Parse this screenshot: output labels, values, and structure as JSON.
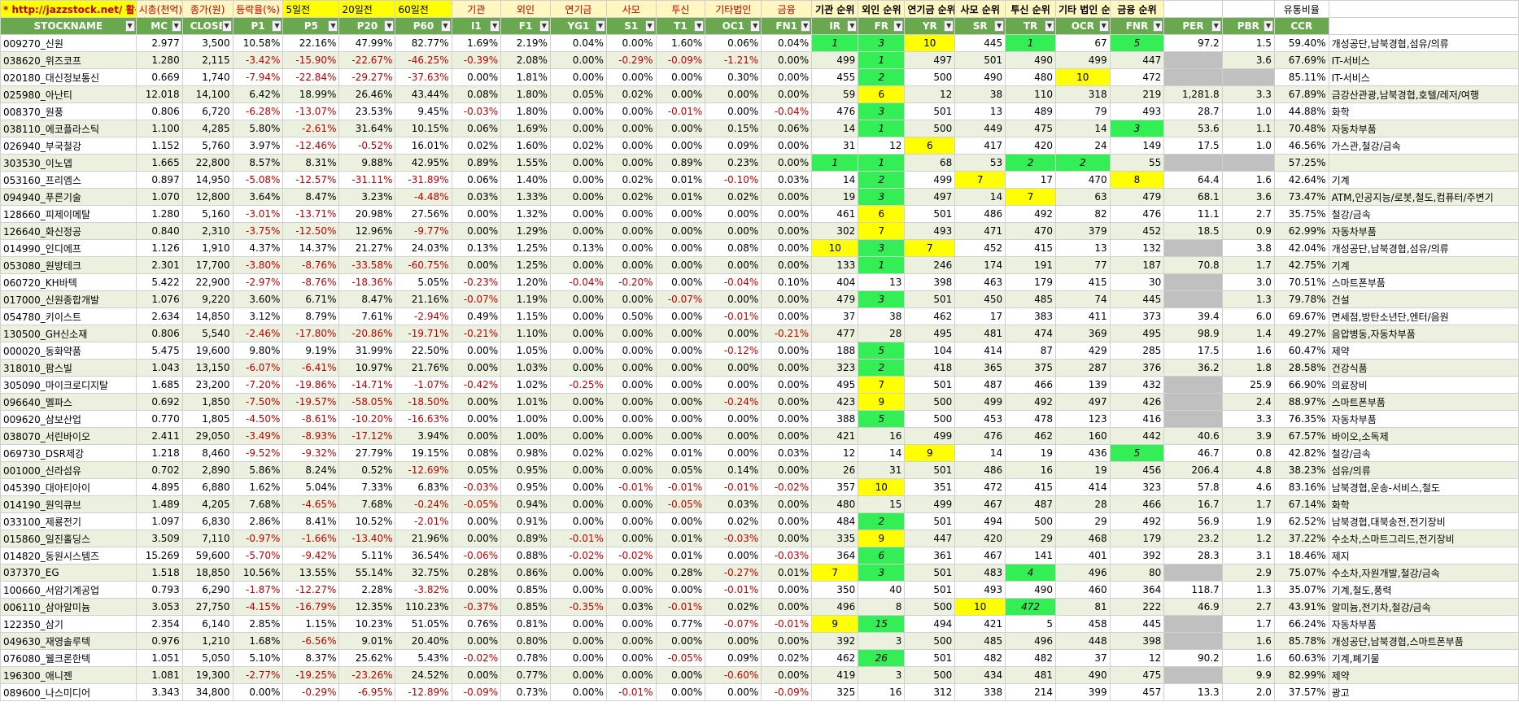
{
  "top_headers": [
    {
      "text": "* http://jazzstock.net/ 활용",
      "cls": "url",
      "colspan": 1
    },
    {
      "text": "시총(천억)",
      "cls": "",
      "colspan": 1
    },
    {
      "text": "종가(원)",
      "cls": "",
      "colspan": 1
    },
    {
      "text": "등락율(%)",
      "cls": "",
      "colspan": 1
    },
    {
      "text": "5일전",
      "cls": "yel",
      "colspan": 1
    },
    {
      "text": "20일전",
      "cls": "yel",
      "colspan": 1
    },
    {
      "text": "60일전",
      "cls": "yel",
      "colspan": 1
    },
    {
      "text": "기관",
      "cls": "",
      "colspan": 1
    },
    {
      "text": "외인",
      "cls": "",
      "colspan": 1
    },
    {
      "text": "연기금",
      "cls": "",
      "colspan": 1
    },
    {
      "text": "사모",
      "cls": "",
      "colspan": 1
    },
    {
      "text": "투신",
      "cls": "",
      "colspan": 1
    },
    {
      "text": "기타법인",
      "cls": "",
      "colspan": 1
    },
    {
      "text": "금융",
      "cls": "",
      "colspan": 1
    },
    {
      "text": "기관 순위",
      "cls": "bold",
      "colspan": 1
    },
    {
      "text": "외인 순위",
      "cls": "bold",
      "colspan": 1
    },
    {
      "text": "연기금 순위",
      "cls": "bold",
      "colspan": 1
    },
    {
      "text": "사모 순위",
      "cls": "bold",
      "colspan": 1
    },
    {
      "text": "투신 순위",
      "cls": "bold",
      "colspan": 1
    },
    {
      "text": "기타 법인 순위",
      "cls": "bold",
      "colspan": 1
    },
    {
      "text": "금융 순위",
      "cls": "bold",
      "colspan": 1
    },
    {
      "text": "",
      "cls": "plain",
      "colspan": 1
    },
    {
      "text": "",
      "cls": "plain",
      "colspan": 1
    },
    {
      "text": "유통비율",
      "cls": "plain",
      "colspan": 1
    },
    {
      "text": "",
      "cls": "plain",
      "colspan": 1
    }
  ],
  "columns": [
    "STOCKNAME",
    "MC",
    "CLOSE",
    "P1",
    "P5",
    "P20",
    "P60",
    "I1",
    "F1",
    "YG1",
    "S1",
    "T1",
    "OC1",
    "FN1",
    "IR",
    "FR",
    "YR",
    "SR",
    "TR",
    "OCR",
    "FNR",
    "PER",
    "PBR",
    "CCR",
    ""
  ],
  "rows": [
    [
      "009270_신원",
      "2.977",
      "3,500",
      "10.58%",
      "22.16%",
      "47.99%",
      "82.77%",
      "1.69%",
      "2.19%",
      "0.04%",
      "0.00%",
      "1.60%",
      "0.06%",
      "0.04%",
      "1",
      "3",
      "10",
      "445",
      "1",
      "67",
      "5",
      "97.2",
      "1.5",
      "59.40%",
      "개성공단,남북경협,섬유/의류"
    ],
    [
      "038620_위즈코프",
      "1.280",
      "2,115",
      "-3.42%",
      "-15.90%",
      "-22.67%",
      "-46.25%",
      "-0.39%",
      "2.08%",
      "0.00%",
      "-0.29%",
      "-0.09%",
      "-1.21%",
      "0.00%",
      "499",
      "1",
      "497",
      "501",
      "490",
      "499",
      "447",
      "",
      "3.6",
      "67.69%",
      "IT-서비스"
    ],
    [
      "020180_대신정보통신",
      "0.669",
      "1,740",
      "-7.94%",
      "-22.84%",
      "-29.27%",
      "-37.63%",
      "0.00%",
      "1.81%",
      "0.00%",
      "0.00%",
      "0.00%",
      "0.30%",
      "0.00%",
      "455",
      "2",
      "500",
      "490",
      "480",
      "10",
      "472",
      "",
      "",
      "85.11%",
      "IT-서비스"
    ],
    [
      "025980_아난티",
      "12.018",
      "14,100",
      "6.42%",
      "18.99%",
      "26.46%",
      "43.44%",
      "0.08%",
      "1.80%",
      "0.05%",
      "0.02%",
      "0.00%",
      "0.00%",
      "0.00%",
      "59",
      "6",
      "12",
      "38",
      "110",
      "318",
      "219",
      "1,281.8",
      "3.3",
      "67.89%",
      "금강산관광,남북경협,호텔/레저/여행"
    ],
    [
      "008370_원풍",
      "0.806",
      "6,720",
      "-6.28%",
      "-13.07%",
      "23.53%",
      "9.45%",
      "-0.03%",
      "1.80%",
      "0.00%",
      "0.00%",
      "-0.01%",
      "0.00%",
      "-0.04%",
      "476",
      "3",
      "501",
      "13",
      "489",
      "79",
      "493",
      "28.7",
      "1.0",
      "44.88%",
      "화학"
    ],
    [
      "038110_에코플라스틱",
      "1.100",
      "4,285",
      "5.80%",
      "-2.61%",
      "31.64%",
      "10.15%",
      "0.06%",
      "1.69%",
      "0.00%",
      "0.00%",
      "0.00%",
      "0.15%",
      "0.06%",
      "14",
      "1",
      "500",
      "449",
      "475",
      "14",
      "3",
      "53.6",
      "1.1",
      "70.48%",
      "자동차부품"
    ],
    [
      "026940_부국철강",
      "1.152",
      "5,760",
      "3.97%",
      "-12.46%",
      "-0.52%",
      "16.01%",
      "0.02%",
      "1.60%",
      "0.02%",
      "0.00%",
      "0.00%",
      "0.09%",
      "0.00%",
      "31",
      "12",
      "6",
      "417",
      "420",
      "24",
      "149",
      "17.5",
      "1.0",
      "46.56%",
      "가스관,철강/금속"
    ],
    [
      "303530_이노뎁",
      "1.665",
      "22,800",
      "8.57%",
      "8.31%",
      "9.88%",
      "42.95%",
      "0.89%",
      "1.55%",
      "0.00%",
      "0.00%",
      "0.89%",
      "0.23%",
      "0.00%",
      "1",
      "1",
      "68",
      "53",
      "2",
      "2",
      "55",
      "",
      "",
      "57.25%",
      ""
    ],
    [
      "053160_프리엠스",
      "0.897",
      "14,950",
      "-5.08%",
      "-12.57%",
      "-31.11%",
      "-31.89%",
      "0.06%",
      "1.40%",
      "0.00%",
      "0.02%",
      "0.01%",
      "-0.10%",
      "0.03%",
      "14",
      "2",
      "499",
      "7",
      "17",
      "470",
      "8",
      "64.4",
      "1.6",
      "42.64%",
      "기계"
    ],
    [
      "094940_푸른기술",
      "1.070",
      "12,800",
      "3.64%",
      "8.47%",
      "3.23%",
      "-4.48%",
      "0.03%",
      "1.33%",
      "0.00%",
      "0.02%",
      "0.01%",
      "0.02%",
      "0.00%",
      "19",
      "3",
      "497",
      "14",
      "7",
      "63",
      "479",
      "68.1",
      "3.6",
      "73.47%",
      "ATM,인공지능/로봇,철도,컴퓨터/주변기"
    ],
    [
      "128660_피제이메탈",
      "1.280",
      "5,160",
      "-3.01%",
      "-13.71%",
      "20.98%",
      "27.56%",
      "0.00%",
      "1.32%",
      "0.00%",
      "0.00%",
      "0.00%",
      "0.00%",
      "0.00%",
      "461",
      "6",
      "501",
      "486",
      "492",
      "82",
      "476",
      "11.1",
      "2.7",
      "35.75%",
      "철강/금속"
    ],
    [
      "126640_화신정공",
      "0.840",
      "2,310",
      "-3.75%",
      "-12.50%",
      "12.96%",
      "-9.77%",
      "0.00%",
      "1.29%",
      "0.00%",
      "0.00%",
      "0.00%",
      "0.00%",
      "0.00%",
      "302",
      "7",
      "493",
      "471",
      "470",
      "379",
      "452",
      "18.5",
      "0.9",
      "62.99%",
      "자동차부품"
    ],
    [
      "014990_인디에프",
      "1.126",
      "1,910",
      "4.37%",
      "14.37%",
      "21.27%",
      "24.03%",
      "0.13%",
      "1.25%",
      "0.13%",
      "0.00%",
      "0.00%",
      "0.08%",
      "0.00%",
      "10",
      "3",
      "7",
      "452",
      "415",
      "13",
      "132",
      "",
      "3.8",
      "42.04%",
      "개성공단,남북경협,섬유/의류"
    ],
    [
      "053080_원방테크",
      "2.301",
      "17,700",
      "-3.80%",
      "-8.76%",
      "-33.58%",
      "-60.75%",
      "0.00%",
      "1.25%",
      "0.00%",
      "0.00%",
      "0.00%",
      "0.00%",
      "0.00%",
      "133",
      "1",
      "246",
      "174",
      "191",
      "77",
      "187",
      "70.8",
      "1.7",
      "42.75%",
      "기계"
    ],
    [
      "060720_KH바텍",
      "5.422",
      "22,900",
      "-2.97%",
      "-8.76%",
      "-18.36%",
      "5.05%",
      "-0.23%",
      "1.20%",
      "-0.04%",
      "-0.20%",
      "0.00%",
      "-0.04%",
      "0.10%",
      "404",
      "13",
      "398",
      "463",
      "179",
      "415",
      "30",
      "",
      "3.0",
      "70.51%",
      "스마트폰부품"
    ],
    [
      "017000_신원종합개발",
      "1.076",
      "9,220",
      "3.60%",
      "6.71%",
      "8.47%",
      "21.16%",
      "-0.07%",
      "1.19%",
      "0.00%",
      "0.00%",
      "-0.07%",
      "0.00%",
      "0.00%",
      "479",
      "3",
      "501",
      "450",
      "485",
      "74",
      "445",
      "",
      "1.3",
      "79.78%",
      "건설"
    ],
    [
      "054780_키이스트",
      "2.634",
      "14,850",
      "3.12%",
      "8.79%",
      "7.61%",
      "-2.94%",
      "0.49%",
      "1.15%",
      "0.00%",
      "0.50%",
      "0.00%",
      "-0.01%",
      "0.00%",
      "37",
      "38",
      "462",
      "17",
      "383",
      "411",
      "373",
      "39.4",
      "6.0",
      "69.67%",
      "면세점,방탄소년단,엔터/음원"
    ],
    [
      "130500_GH신소재",
      "0.806",
      "5,540",
      "-2.46%",
      "-17.80%",
      "-20.86%",
      "-19.71%",
      "-0.21%",
      "1.10%",
      "0.00%",
      "0.00%",
      "0.00%",
      "0.00%",
      "-0.21%",
      "477",
      "28",
      "495",
      "481",
      "474",
      "369",
      "495",
      "98.9",
      "1.4",
      "49.27%",
      "음압병동,자동차부품"
    ],
    [
      "000020_동화약품",
      "5.475",
      "19,600",
      "9.80%",
      "9.19%",
      "31.99%",
      "22.50%",
      "0.00%",
      "1.05%",
      "0.00%",
      "0.00%",
      "0.00%",
      "-0.12%",
      "0.00%",
      "188",
      "5",
      "104",
      "414",
      "87",
      "429",
      "285",
      "17.5",
      "1.6",
      "60.47%",
      "제약"
    ],
    [
      "318010_팜스빌",
      "1.043",
      "13,150",
      "-6.07%",
      "-6.41%",
      "10.97%",
      "21.76%",
      "0.00%",
      "1.03%",
      "0.00%",
      "0.00%",
      "0.00%",
      "0.00%",
      "0.00%",
      "323",
      "2",
      "418",
      "365",
      "375",
      "287",
      "376",
      "36.2",
      "1.8",
      "28.58%",
      "건강식품"
    ],
    [
      "305090_마이크로디지탈",
      "1.685",
      "23,200",
      "-7.20%",
      "-19.86%",
      "-14.71%",
      "-1.07%",
      "-0.42%",
      "1.02%",
      "-0.25%",
      "0.00%",
      "0.00%",
      "0.00%",
      "0.00%",
      "495",
      "7",
      "501",
      "487",
      "466",
      "139",
      "432",
      "",
      "25.9",
      "66.90%",
      "의료장비"
    ],
    [
      "096640_멜파스",
      "0.692",
      "1,850",
      "-7.50%",
      "-19.57%",
      "-58.05%",
      "-18.50%",
      "0.00%",
      "1.01%",
      "0.00%",
      "0.00%",
      "0.00%",
      "-0.24%",
      "0.00%",
      "423",
      "9",
      "500",
      "499",
      "492",
      "497",
      "426",
      "",
      "2.4",
      "88.97%",
      "스마트폰부품"
    ],
    [
      "009620_삼보산업",
      "0.770",
      "1,805",
      "-4.50%",
      "-8.61%",
      "-10.20%",
      "-16.63%",
      "0.00%",
      "1.00%",
      "0.00%",
      "0.00%",
      "0.00%",
      "0.00%",
      "0.00%",
      "388",
      "5",
      "500",
      "453",
      "478",
      "123",
      "416",
      "",
      "3.3",
      "76.35%",
      "자동차부품"
    ],
    [
      "038070_서린바이오",
      "2.411",
      "29,050",
      "-3.49%",
      "-8.93%",
      "-17.12%",
      "3.94%",
      "0.00%",
      "1.00%",
      "0.00%",
      "0.00%",
      "0.00%",
      "0.00%",
      "0.00%",
      "421",
      "16",
      "499",
      "476",
      "462",
      "160",
      "442",
      "40.6",
      "3.9",
      "67.57%",
      "바이오,소독제"
    ],
    [
      "069730_DSR제강",
      "1.218",
      "8,460",
      "-9.52%",
      "-9.32%",
      "27.79%",
      "19.15%",
      "0.08%",
      "0.98%",
      "0.02%",
      "0.02%",
      "0.01%",
      "0.00%",
      "0.03%",
      "12",
      "14",
      "9",
      "14",
      "19",
      "436",
      "5",
      "46.7",
      "0.8",
      "42.82%",
      "철강/금속"
    ],
    [
      "001000_신라섬유",
      "0.702",
      "2,890",
      "5.86%",
      "8.24%",
      "0.52%",
      "-12.69%",
      "0.05%",
      "0.95%",
      "0.00%",
      "0.00%",
      "0.05%",
      "0.14%",
      "0.00%",
      "26",
      "31",
      "501",
      "486",
      "16",
      "19",
      "456",
      "206.4",
      "4.8",
      "38.23%",
      "섬유/의류"
    ],
    [
      "045390_대아티아이",
      "4.895",
      "6,880",
      "1.62%",
      "5.04%",
      "7.33%",
      "6.83%",
      "-0.03%",
      "0.95%",
      "0.00%",
      "-0.01%",
      "-0.01%",
      "-0.01%",
      "-0.02%",
      "357",
      "10",
      "351",
      "472",
      "415",
      "414",
      "323",
      "57.8",
      "4.6",
      "83.16%",
      "남북경협,운송-서비스,철도"
    ],
    [
      "014190_원익큐브",
      "1.489",
      "4,205",
      "7.68%",
      "-4.65%",
      "7.68%",
      "-0.24%",
      "-0.05%",
      "0.94%",
      "0.00%",
      "0.00%",
      "-0.05%",
      "0.03%",
      "0.00%",
      "480",
      "15",
      "499",
      "467",
      "487",
      "28",
      "466",
      "16.7",
      "1.7",
      "67.14%",
      "화학"
    ],
    [
      "033100_제룡전기",
      "1.097",
      "6,830",
      "2.86%",
      "8.41%",
      "10.52%",
      "-2.01%",
      "0.00%",
      "0.91%",
      "0.00%",
      "0.00%",
      "0.00%",
      "0.02%",
      "0.00%",
      "484",
      "2",
      "501",
      "494",
      "500",
      "29",
      "492",
      "56.9",
      "1.9",
      "62.52%",
      "남북경협,대북송전,전기장비"
    ],
    [
      "015860_일진홀딩스",
      "3.509",
      "7,110",
      "-0.97%",
      "-1.66%",
      "-13.40%",
      "21.96%",
      "0.00%",
      "0.89%",
      "-0.01%",
      "0.00%",
      "0.01%",
      "-0.03%",
      "0.00%",
      "335",
      "9",
      "447",
      "420",
      "29",
      "468",
      "179",
      "23.2",
      "1.2",
      "37.22%",
      "수소차,스마트그리드,전기장비"
    ],
    [
      "014820_동원시스템즈",
      "15.269",
      "59,600",
      "-5.70%",
      "-9.42%",
      "5.11%",
      "36.54%",
      "-0.06%",
      "0.88%",
      "-0.02%",
      "-0.02%",
      "0.01%",
      "0.00%",
      "-0.03%",
      "364",
      "6",
      "361",
      "467",
      "141",
      "401",
      "392",
      "28.3",
      "3.1",
      "18.46%",
      "제지"
    ],
    [
      "037370_EG",
      "1.518",
      "18,850",
      "10.56%",
      "13.55%",
      "55.14%",
      "32.75%",
      "0.28%",
      "0.86%",
      "0.00%",
      "0.00%",
      "0.28%",
      "-0.27%",
      "0.01%",
      "7",
      "3",
      "501",
      "483",
      "4",
      "496",
      "80",
      "",
      "2.9",
      "75.07%",
      "수소차,자원개발,철강/금속"
    ],
    [
      "100660_서암기계공업",
      "0.793",
      "6,290",
      "-1.87%",
      "-12.27%",
      "2.28%",
      "-3.82%",
      "0.00%",
      "0.85%",
      "0.00%",
      "0.00%",
      "0.00%",
      "-0.01%",
      "0.00%",
      "350",
      "40",
      "501",
      "493",
      "490",
      "460",
      "364",
      "118.7",
      "1.3",
      "35.07%",
      "기계,철도,풍력"
    ],
    [
      "006110_삼아알미늄",
      "3.053",
      "27,750",
      "-4.15%",
      "-16.79%",
      "12.35%",
      "110.23%",
      "-0.37%",
      "0.85%",
      "-0.35%",
      "0.03%",
      "-0.01%",
      "0.02%",
      "0.00%",
      "496",
      "8",
      "500",
      "10",
      "472",
      "81",
      "222",
      "46.9",
      "2.7",
      "43.91%",
      "알미늄,전기차,철강/금속"
    ],
    [
      "122350_삼기",
      "2.354",
      "6,140",
      "2.85%",
      "1.15%",
      "10.23%",
      "51.05%",
      "0.76%",
      "0.81%",
      "0.00%",
      "0.00%",
      "0.77%",
      "-0.07%",
      "-0.01%",
      "9",
      "15",
      "494",
      "421",
      "5",
      "458",
      "445",
      "",
      "1.7",
      "66.24%",
      "자동차부품"
    ],
    [
      "049630_재영솔루텍",
      "0.976",
      "1,210",
      "1.68%",
      "-6.56%",
      "9.01%",
      "20.40%",
      "0.00%",
      "0.80%",
      "0.00%",
      "0.00%",
      "0.00%",
      "0.00%",
      "0.00%",
      "392",
      "3",
      "500",
      "485",
      "496",
      "448",
      "398",
      "",
      "1.6",
      "85.78%",
      "개성공단,남북경협,스마트폰부품"
    ],
    [
      "076080_웰크론한텍",
      "1.051",
      "5,050",
      "5.10%",
      "8.37%",
      "25.62%",
      "5.43%",
      "-0.02%",
      "0.78%",
      "0.00%",
      "0.00%",
      "-0.05%",
      "0.09%",
      "0.02%",
      "462",
      "26",
      "501",
      "482",
      "482",
      "37",
      "12",
      "90.2",
      "1.6",
      "60.63%",
      "기계,폐기물"
    ],
    [
      "196300_애니젠",
      "1.081",
      "19,300",
      "-2.77%",
      "-19.25%",
      "-23.26%",
      "24.52%",
      "0.00%",
      "0.77%",
      "0.00%",
      "0.00%",
      "0.00%",
      "-0.60%",
      "0.00%",
      "419",
      "3",
      "500",
      "434",
      "481",
      "490",
      "475",
      "",
      "9.9",
      "82.99%",
      "제약"
    ],
    [
      "089600_나스미디어",
      "3.343",
      "34,800",
      "0.00%",
      "-0.29%",
      "-6.95%",
      "-12.89%",
      "-0.09%",
      "0.73%",
      "0.00%",
      "-0.01%",
      "0.00%",
      "0.00%",
      "-0.09%",
      "325",
      "16",
      "312",
      "338",
      "214",
      "399",
      "457",
      "13.3",
      "2.0",
      "37.57%",
      "광고"
    ]
  ],
  "highlights": {
    "green": [
      [
        0,
        14
      ],
      [
        0,
        15
      ],
      [
        0,
        18
      ],
      [
        0,
        20
      ],
      [
        1,
        15
      ],
      [
        2,
        15
      ],
      [
        4,
        15
      ],
      [
        5,
        15
      ],
      [
        5,
        20
      ],
      [
        7,
        14
      ],
      [
        7,
        15
      ],
      [
        7,
        18
      ],
      [
        7,
        19
      ],
      [
        8,
        15
      ],
      [
        9,
        15
      ],
      [
        12,
        15
      ],
      [
        13,
        15
      ],
      [
        15,
        15
      ],
      [
        18,
        15
      ],
      [
        19,
        15
      ],
      [
        22,
        15
      ],
      [
        24,
        20
      ],
      [
        28,
        15
      ],
      [
        30,
        15
      ],
      [
        31,
        15
      ],
      [
        31,
        18
      ],
      [
        33,
        18
      ],
      [
        34,
        15
      ],
      [
        36,
        15
      ]
    ],
    "yellow": [
      [
        0,
        16
      ],
      [
        2,
        19
      ],
      [
        3,
        15
      ],
      [
        6,
        16
      ],
      [
        8,
        17
      ],
      [
        8,
        20
      ],
      [
        9,
        18
      ],
      [
        10,
        15
      ],
      [
        11,
        15
      ],
      [
        12,
        14
      ],
      [
        12,
        16
      ],
      [
        18,
        15
      ],
      [
        20,
        15
      ],
      [
        21,
        15
      ],
      [
        24,
        16
      ],
      [
        26,
        15
      ],
      [
        29,
        15
      ],
      [
        31,
        14
      ],
      [
        33,
        17
      ],
      [
        34,
        14
      ]
    ],
    "gray_rows_per": [
      1,
      2,
      7,
      12,
      14,
      15,
      20,
      21,
      22,
      31,
      34,
      35,
      37
    ],
    "gray_rows_pbr": [
      2,
      7
    ]
  },
  "colors": {
    "green_header": "#6aa84f",
    "band": "#ebf1de",
    "neg": "#c00000",
    "highlight_green": "#33ee55",
    "highlight_yellow": "#ffff00",
    "gray": "#c0c0c0"
  }
}
